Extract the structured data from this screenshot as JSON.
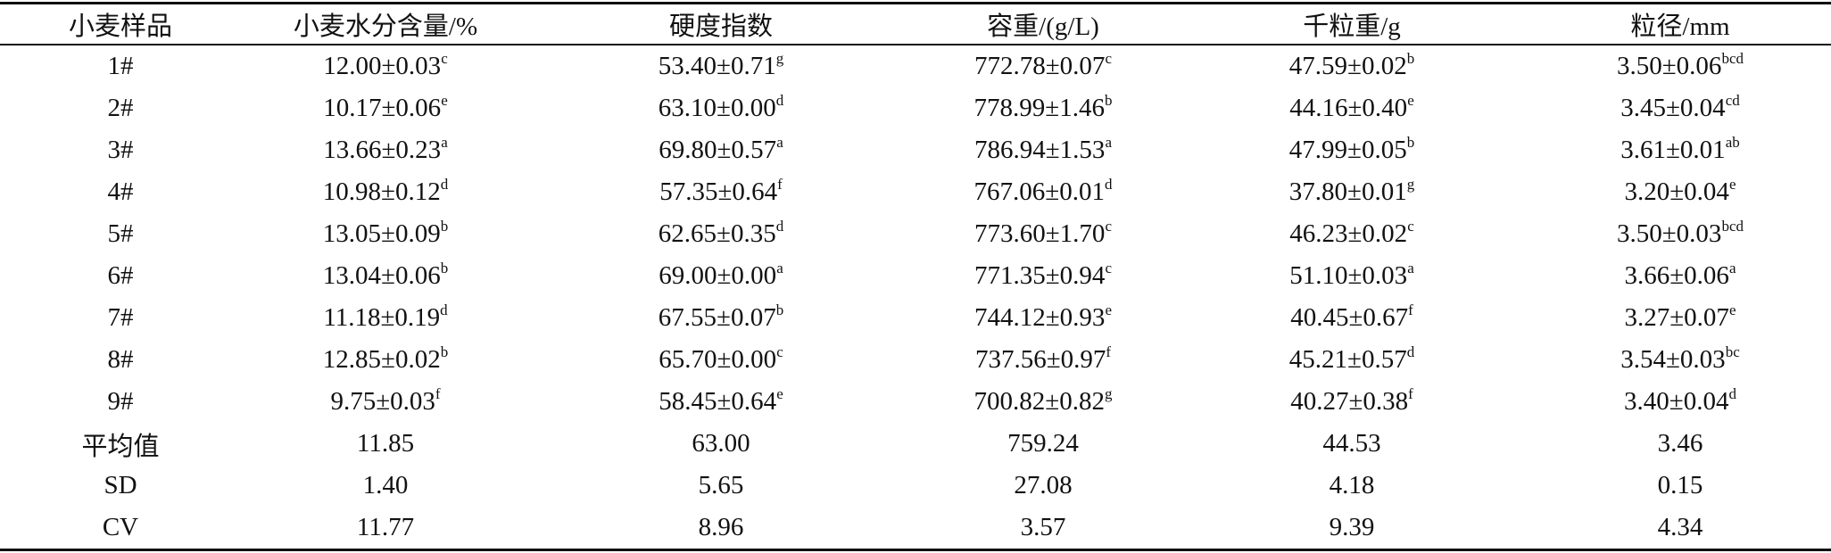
{
  "table": {
    "header": [
      "小麦样品",
      "小麦水分含量/%",
      "硬度指数",
      "容重/(g/L)",
      "千粒重/g",
      "粒径/mm"
    ],
    "rows": [
      [
        "1#",
        {
          "main": "12.00±0.03",
          "sup": "c"
        },
        {
          "main": "53.40±0.71",
          "sup": "g"
        },
        {
          "main": "772.78±0.07",
          "sup": "c"
        },
        {
          "main": "47.59±0.02",
          "sup": "b"
        },
        {
          "main": "3.50±0.06",
          "sup": "bcd"
        }
      ],
      [
        "2#",
        {
          "main": "10.17±0.06",
          "sup": "e"
        },
        {
          "main": "63.10±0.00",
          "sup": "d"
        },
        {
          "main": "778.99±1.46",
          "sup": "b"
        },
        {
          "main": "44.16±0.40",
          "sup": "e"
        },
        {
          "main": "3.45±0.04",
          "sup": "cd"
        }
      ],
      [
        "3#",
        {
          "main": "13.66±0.23",
          "sup": "a"
        },
        {
          "main": "69.80±0.57",
          "sup": "a"
        },
        {
          "main": "786.94±1.53",
          "sup": "a"
        },
        {
          "main": "47.99±0.05",
          "sup": "b"
        },
        {
          "main": "3.61±0.01",
          "sup": "ab"
        }
      ],
      [
        "4#",
        {
          "main": "10.98±0.12",
          "sup": "d"
        },
        {
          "main": "57.35±0.64",
          "sup": "f"
        },
        {
          "main": "767.06±0.01",
          "sup": "d"
        },
        {
          "main": "37.80±0.01",
          "sup": "g"
        },
        {
          "main": "3.20±0.04",
          "sup": "e"
        }
      ],
      [
        "5#",
        {
          "main": "13.05±0.09",
          "sup": "b"
        },
        {
          "main": "62.65±0.35",
          "sup": "d"
        },
        {
          "main": "773.60±1.70",
          "sup": "c"
        },
        {
          "main": "46.23±0.02",
          "sup": "c"
        },
        {
          "main": "3.50±0.03",
          "sup": "bcd"
        }
      ],
      [
        "6#",
        {
          "main": "13.04±0.06",
          "sup": "b"
        },
        {
          "main": "69.00±0.00",
          "sup": "a"
        },
        {
          "main": "771.35±0.94",
          "sup": "c"
        },
        {
          "main": "51.10±0.03",
          "sup": "a"
        },
        {
          "main": "3.66±0.06",
          "sup": "a"
        }
      ],
      [
        "7#",
        {
          "main": "11.18±0.19",
          "sup": "d"
        },
        {
          "main": "67.55±0.07",
          "sup": "b"
        },
        {
          "main": "744.12±0.93",
          "sup": "e"
        },
        {
          "main": "40.45±0.67",
          "sup": "f"
        },
        {
          "main": "3.27±0.07",
          "sup": "e"
        }
      ],
      [
        "8#",
        {
          "main": "12.85±0.02",
          "sup": "b"
        },
        {
          "main": "65.70±0.00",
          "sup": "c"
        },
        {
          "main": "737.56±0.97",
          "sup": "f"
        },
        {
          "main": "45.21±0.57",
          "sup": "d"
        },
        {
          "main": "3.54±0.03",
          "sup": "bc"
        }
      ],
      [
        "9#",
        {
          "main": "9.75±0.03",
          "sup": "f"
        },
        {
          "main": "58.45±0.64",
          "sup": "e"
        },
        {
          "main": "700.82±0.82",
          "sup": "g"
        },
        {
          "main": "40.27±0.38",
          "sup": "f"
        },
        {
          "main": "3.40±0.04",
          "sup": "d"
        }
      ],
      [
        "平均值",
        "11.85",
        "63.00",
        "759.24",
        "44.53",
        "3.46"
      ],
      [
        "SD",
        "1.40",
        "5.65",
        "27.08",
        "4.18",
        "0.15"
      ],
      [
        "CV",
        "11.77",
        "8.96",
        "3.57",
        "9.39",
        "4.34"
      ]
    ]
  }
}
